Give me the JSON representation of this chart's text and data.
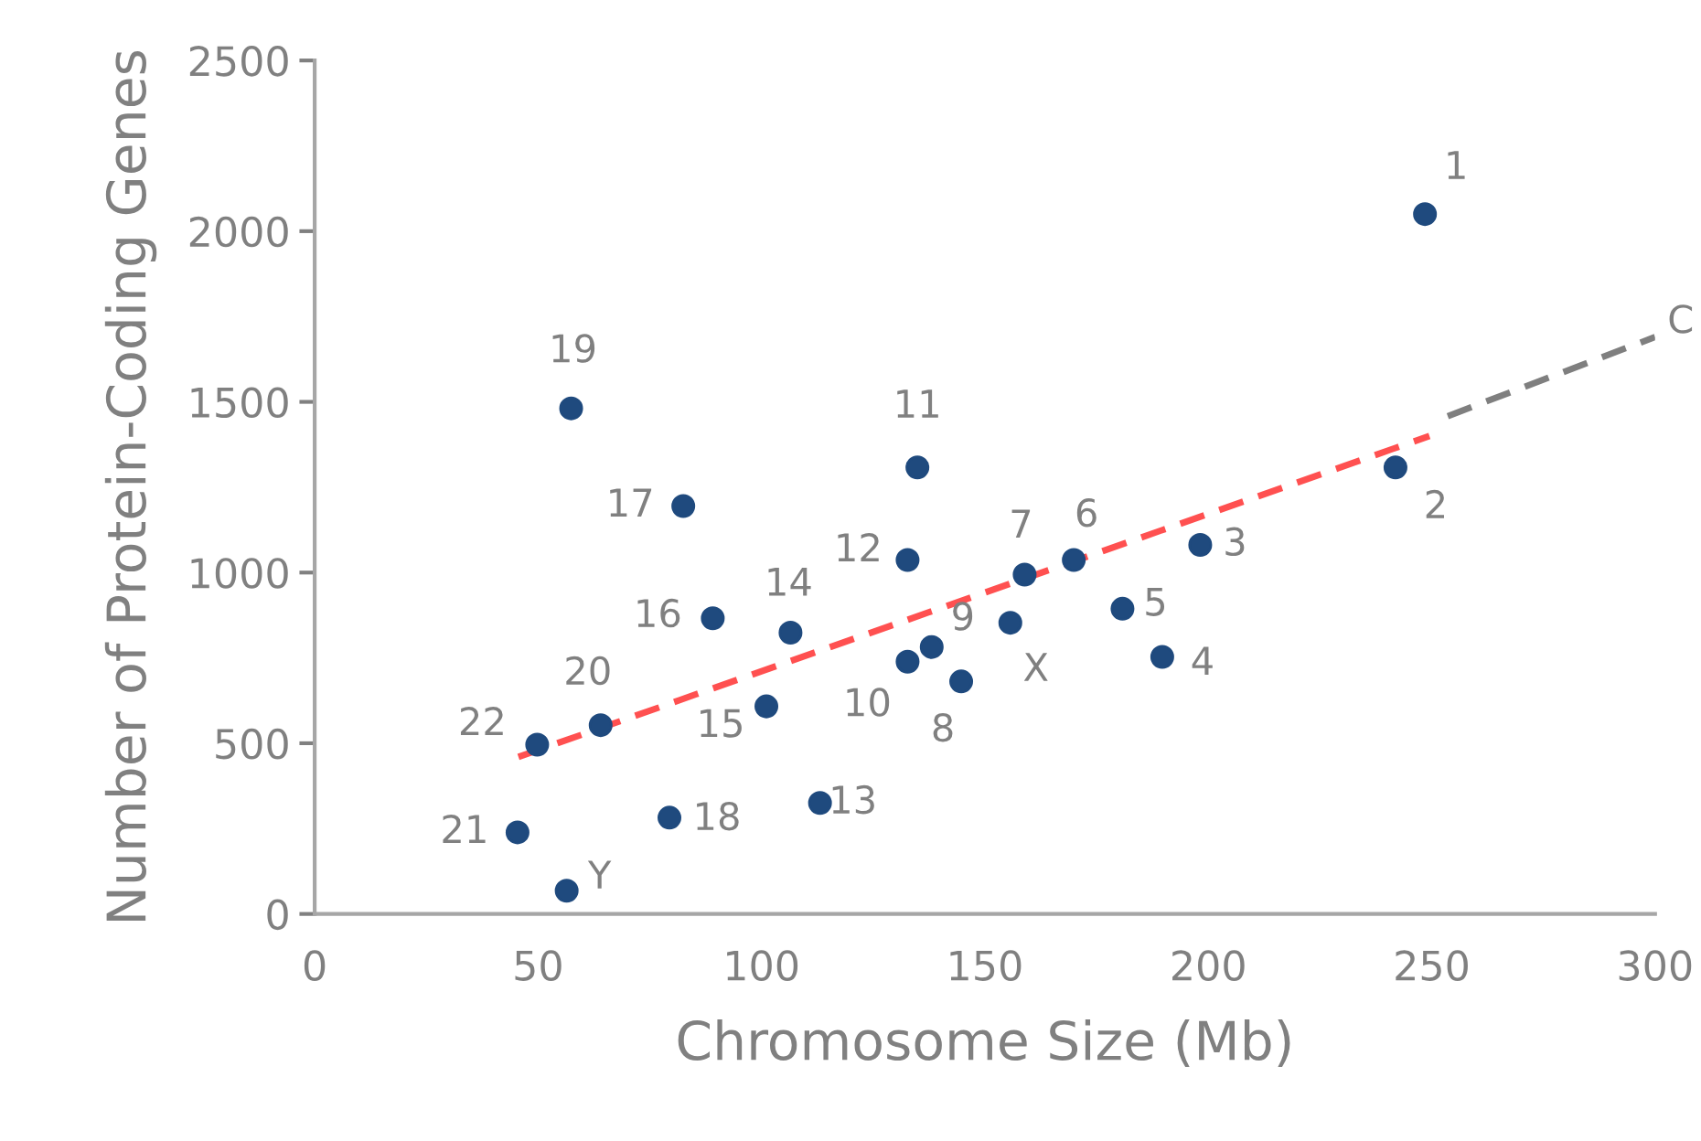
{
  "chart_data": {
    "type": "scatter",
    "xlabel": "Chromosome Size (Mb)",
    "ylabel": "Number of Protein-Coding Genes",
    "xlim": [
      0,
      300
    ],
    "xticks": [
      0,
      50,
      100,
      150,
      200,
      250,
      300
    ],
    "ylim": [
      0,
      2500
    ],
    "yticks": [
      0,
      500,
      1000,
      1500,
      2000,
      2500
    ],
    "grid": false,
    "legend": false,
    "series": [
      {
        "color": "#1f4a7e",
        "marker": "circle",
        "x": [
          248.5,
          241.9,
          198.2,
          189.7,
          180.8,
          169.9,
          158.9,
          144.7,
          138.1,
          132.7,
          134.9,
          132.7,
          113.1,
          106.5,
          101.1,
          89.1,
          82.5,
          79.4,
          57.4,
          64.0,
          45.4,
          49.8,
          155.7,
          56.4
        ],
        "values": [
          2050,
          1308,
          1081,
          753,
          894,
          1037,
          994,
          681,
          782,
          739,
          1308,
          1037,
          325,
          824,
          608,
          866,
          1195,
          282,
          1481,
          553,
          239,
          496,
          853,
          68
        ]
      },
      {
        "type": "line",
        "color": "#ff5050",
        "line_style": "dashed",
        "x": [
          45.6,
          249.5
        ],
        "values": [
          460,
          1400
        ]
      },
      {
        "type": "line",
        "color": "#7f7f7f",
        "line_style": "dashed",
        "x": [
          253.6,
          300
        ],
        "values": [
          1458,
          1690
        ]
      }
    ],
    "annotations": [
      {
        "text": "1",
        "x": 248.5,
        "y": 2050
      },
      {
        "text": "2",
        "x": 241.9,
        "y": 1308
      },
      {
        "text": "3",
        "x": 198.2,
        "y": 1081
      },
      {
        "text": "4",
        "x": 189.7,
        "y": 753
      },
      {
        "text": "5",
        "x": 180.8,
        "y": 894
      },
      {
        "text": "6",
        "x": 169.9,
        "y": 1037
      },
      {
        "text": "7",
        "x": 158.9,
        "y": 994
      },
      {
        "text": "8",
        "x": 144.7,
        "y": 681
      },
      {
        "text": "9",
        "x": 138.1,
        "y": 782
      },
      {
        "text": "10",
        "x": 132.7,
        "y": 739
      },
      {
        "text": "11",
        "x": 134.9,
        "y": 1308
      },
      {
        "text": "12",
        "x": 132.7,
        "y": 1037
      },
      {
        "text": "13",
        "x": 113.1,
        "y": 325
      },
      {
        "text": "14",
        "x": 106.5,
        "y": 824
      },
      {
        "text": "15",
        "x": 101.1,
        "y": 608
      },
      {
        "text": "16",
        "x": 89.1,
        "y": 866
      },
      {
        "text": "17",
        "x": 82.5,
        "y": 1195
      },
      {
        "text": "18",
        "x": 79.4,
        "y": 282
      },
      {
        "text": "19",
        "x": 57.4,
        "y": 1481
      },
      {
        "text": "20",
        "x": 64.0,
        "y": 553
      },
      {
        "text": "21",
        "x": 45.4,
        "y": 239
      },
      {
        "text": "22",
        "x": 49.8,
        "y": 496
      },
      {
        "text": "X",
        "x": 155.7,
        "y": 853
      },
      {
        "text": "Y",
        "x": 56.4,
        "y": 68
      },
      {
        "text": "C",
        "x": 300,
        "y": 1690
      }
    ]
  }
}
